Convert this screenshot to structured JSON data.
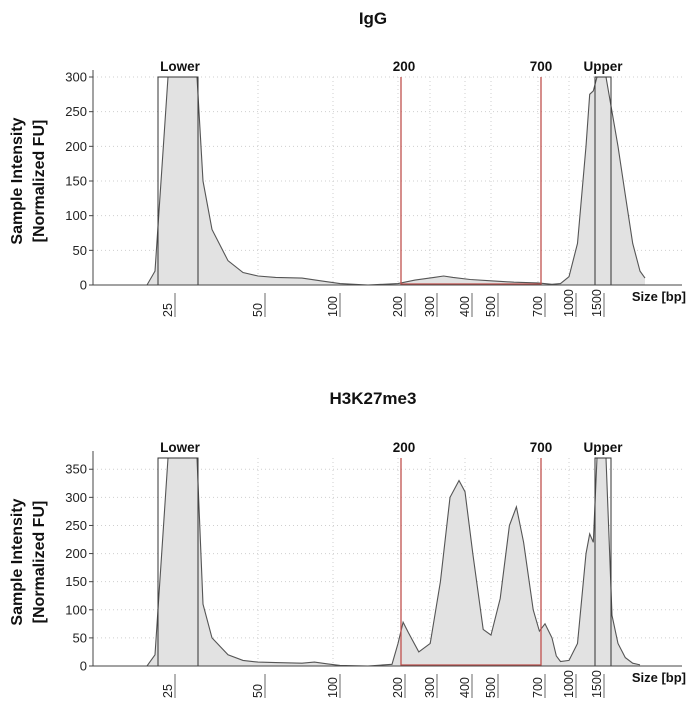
{
  "chart_data": [
    {
      "type": "area",
      "title": "IgG",
      "ylabel": [
        "Sample Intensity",
        "[Normalized FU]"
      ],
      "xlabel": "Size [bp]",
      "x_scale": "log-ish (electropherogram size ladder)",
      "ylim": [
        0,
        300
      ],
      "y_ticks": [
        0,
        50,
        100,
        150,
        200,
        250,
        300
      ],
      "x_ticks": [
        "25",
        "50",
        "100",
        "200",
        "300",
        "400",
        "500",
        "700",
        "1000",
        "1500"
      ],
      "markers": [
        {
          "label": "Lower",
          "type": "ladder",
          "value_bp": "25"
        },
        {
          "label": "200",
          "type": "region-start",
          "value_bp": 200
        },
        {
          "label": "700",
          "type": "region-end",
          "value_bp": 700
        },
        {
          "label": "Upper",
          "type": "ladder",
          "value_bp": "1500"
        }
      ],
      "trace": [
        [
          "10",
          0
        ],
        [
          "20",
          0
        ],
        [
          "23",
          20
        ],
        [
          "25",
          300
        ],
        [
          "30",
          300
        ],
        [
          "32",
          150
        ],
        [
          "35",
          80
        ],
        [
          "40",
          35
        ],
        [
          "45",
          18
        ],
        [
          "50",
          13
        ],
        [
          "60",
          11
        ],
        [
          "75",
          10
        ],
        [
          "90",
          6
        ],
        [
          "110",
          2
        ],
        [
          "150",
          0
        ],
        [
          "200",
          2
        ],
        [
          "250",
          7
        ],
        [
          "300",
          11
        ],
        [
          "330",
          13
        ],
        [
          "360",
          11
        ],
        [
          "420",
          8
        ],
        [
          "500",
          6
        ],
        [
          "600",
          4
        ],
        [
          "700",
          3
        ],
        [
          "800",
          1
        ],
        [
          "900",
          2
        ],
        [
          "1000",
          12
        ],
        [
          "1100",
          60
        ],
        [
          "1200",
          200
        ],
        [
          "1300",
          275
        ],
        [
          "1400",
          280
        ],
        [
          "1500",
          300
        ],
        [
          "1600",
          300
        ],
        [
          "1700",
          200
        ],
        [
          "1800",
          130
        ],
        [
          "1900",
          60
        ],
        [
          "2000",
          20
        ],
        [
          "2100",
          10
        ]
      ]
    },
    {
      "type": "area",
      "title": "H3K27me3",
      "ylabel": [
        "Sample Intensity",
        "[Normalized FU]"
      ],
      "xlabel": "Size [bp]",
      "ylim": [
        0,
        370
      ],
      "y_ticks": [
        0,
        50,
        100,
        150,
        200,
        250,
        300,
        350
      ],
      "x_ticks": [
        "25",
        "50",
        "100",
        "200",
        "300",
        "400",
        "500",
        "700",
        "1000",
        "1500"
      ],
      "markers": [
        {
          "label": "Lower",
          "type": "ladder",
          "value_bp": "25"
        },
        {
          "label": "200",
          "type": "region-start",
          "value_bp": 200
        },
        {
          "label": "700",
          "type": "region-end",
          "value_bp": 700
        },
        {
          "label": "Upper",
          "type": "ladder",
          "value_bp": "1500"
        }
      ],
      "trace": [
        [
          "10",
          0
        ],
        [
          "20",
          0
        ],
        [
          "23",
          20
        ],
        [
          "25",
          370
        ],
        [
          "30",
          370
        ],
        [
          "32",
          110
        ],
        [
          "35",
          50
        ],
        [
          "40",
          20
        ],
        [
          "45",
          10
        ],
        [
          "50",
          7
        ],
        [
          "60",
          6
        ],
        [
          "75",
          5
        ],
        [
          "85",
          7
        ],
        [
          "95",
          4
        ],
        [
          "110",
          1
        ],
        [
          "150",
          0
        ],
        [
          "190",
          3
        ],
        [
          "200",
          40
        ],
        [
          "215",
          78
        ],
        [
          "230",
          60
        ],
        [
          "260",
          25
        ],
        [
          "290",
          40
        ],
        [
          "320",
          150
        ],
        [
          "350",
          300
        ],
        [
          "380",
          330
        ],
        [
          "400",
          310
        ],
        [
          "430",
          200
        ],
        [
          "470",
          65
        ],
        [
          "500",
          55
        ],
        [
          "540",
          120
        ],
        [
          "580",
          250
        ],
        [
          "610",
          283
        ],
        [
          "640",
          220
        ],
        [
          "680",
          100
        ],
        [
          "710",
          62
        ],
        [
          "750",
          75
        ],
        [
          "800",
          50
        ],
        [
          "850",
          18
        ],
        [
          "900",
          8
        ],
        [
          "1000",
          10
        ],
        [
          "1100",
          40
        ],
        [
          "1200",
          200
        ],
        [
          "1300",
          235
        ],
        [
          "1400",
          220
        ],
        [
          "1500",
          370
        ],
        [
          "1600",
          370
        ],
        [
          "1650",
          90
        ],
        [
          "1700",
          40
        ],
        [
          "1800",
          15
        ],
        [
          "1900",
          5
        ],
        [
          "2000",
          2
        ]
      ]
    }
  ]
}
